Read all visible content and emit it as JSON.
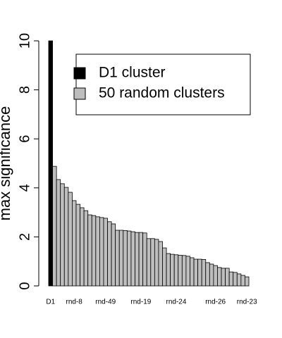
{
  "chart_data": {
    "type": "bar",
    "y_label": "max significance",
    "categories": [
      "D1",
      null,
      null,
      null,
      null,
      null,
      "rnd-8",
      null,
      null,
      null,
      null,
      null,
      null,
      null,
      "rnd-49",
      null,
      null,
      null,
      null,
      null,
      null,
      null,
      null,
      "rnd-19",
      null,
      null,
      null,
      null,
      null,
      null,
      null,
      null,
      "rnd-24",
      null,
      null,
      null,
      null,
      null,
      null,
      null,
      null,
      null,
      "rnd-26",
      null,
      null,
      null,
      null,
      null,
      null,
      null,
      "rnd-23"
    ],
    "series": [
      {
        "name": "D1 cluster",
        "color": "#000000",
        "values": [
          10,
          null,
          null,
          null,
          null,
          null,
          null,
          null,
          null,
          null,
          null,
          null,
          null,
          null,
          null,
          null,
          null,
          null,
          null,
          null,
          null,
          null,
          null,
          null,
          null,
          null,
          null,
          null,
          null,
          null,
          null,
          null,
          null,
          null,
          null,
          null,
          null,
          null,
          null,
          null,
          null,
          null,
          null,
          null,
          null,
          null,
          null,
          null,
          null,
          null,
          null
        ]
      },
      {
        "name": "50 random clusters",
        "color": "#bebebe",
        "values": [
          null,
          4.88,
          4.34,
          4.17,
          4.02,
          3.82,
          3.48,
          3.33,
          3.19,
          3.07,
          2.9,
          2.87,
          2.82,
          2.79,
          2.76,
          2.62,
          2.53,
          2.27,
          2.27,
          2.26,
          2.24,
          2.21,
          2.18,
          2.18,
          2.16,
          1.93,
          1.93,
          1.9,
          1.81,
          1.55,
          1.32,
          1.29,
          1.27,
          1.25,
          1.24,
          1.21,
          1.15,
          1.09,
          1.09,
          1.08,
          0.95,
          0.89,
          0.83,
          0.75,
          0.72,
          0.72,
          0.57,
          0.55,
          0.49,
          0.43,
          0.37
        ]
      }
    ],
    "ylim": [
      0,
      10
    ],
    "yticks": [
      0,
      2,
      4,
      6,
      8,
      10
    ],
    "legend": "top-right"
  }
}
